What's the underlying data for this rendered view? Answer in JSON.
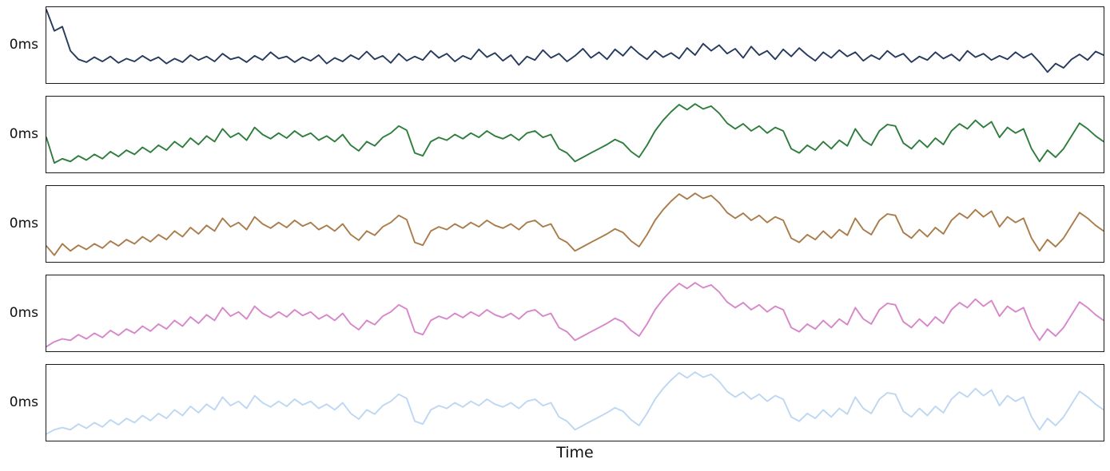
{
  "figure": {
    "xlabel": "Time",
    "ytick_label": "0ms",
    "background_color": "#ffffff",
    "border_color": "#1a1a1a",
    "text_color": "#111111"
  },
  "chart_data": {
    "type": "line",
    "title": "",
    "xlabel": "Time",
    "ylabel": "",
    "layout": "5 vertically stacked subplots, shared unlabeled time axis, no legend, no grid",
    "subplot_count": 5,
    "x": "133 evenly spaced time samples (no x tick labels)",
    "ytick_labels": [
      "0ms"
    ],
    "ytick_position": "middle of each subplot",
    "ylim": [
      0,
      1
    ],
    "legend": "none",
    "subplots": [
      {
        "name": "subplot-1",
        "color": "#253a5c",
        "values": [
          1.0,
          0.7,
          0.76,
          0.42,
          0.3,
          0.26,
          0.33,
          0.27,
          0.34,
          0.25,
          0.31,
          0.27,
          0.35,
          0.28,
          0.33,
          0.24,
          0.31,
          0.26,
          0.36,
          0.29,
          0.34,
          0.27,
          0.38,
          0.3,
          0.33,
          0.26,
          0.35,
          0.29,
          0.4,
          0.31,
          0.34,
          0.26,
          0.33,
          0.28,
          0.36,
          0.24,
          0.32,
          0.27,
          0.36,
          0.3,
          0.41,
          0.3,
          0.35,
          0.25,
          0.38,
          0.28,
          0.34,
          0.29,
          0.42,
          0.32,
          0.38,
          0.27,
          0.35,
          0.3,
          0.44,
          0.33,
          0.39,
          0.28,
          0.36,
          0.22,
          0.34,
          0.29,
          0.43,
          0.32,
          0.38,
          0.27,
          0.35,
          0.45,
          0.32,
          0.4,
          0.3,
          0.44,
          0.35,
          0.48,
          0.38,
          0.3,
          0.42,
          0.33,
          0.39,
          0.31,
          0.46,
          0.36,
          0.52,
          0.42,
          0.5,
          0.38,
          0.45,
          0.32,
          0.48,
          0.36,
          0.42,
          0.3,
          0.44,
          0.34,
          0.46,
          0.36,
          0.28,
          0.4,
          0.32,
          0.43,
          0.34,
          0.4,
          0.28,
          0.36,
          0.3,
          0.42,
          0.33,
          0.38,
          0.26,
          0.34,
          0.29,
          0.4,
          0.31,
          0.37,
          0.28,
          0.42,
          0.33,
          0.38,
          0.29,
          0.35,
          0.3,
          0.4,
          0.32,
          0.38,
          0.26,
          0.12,
          0.24,
          0.18,
          0.3,
          0.37,
          0.29,
          0.41,
          0.36
        ]
      },
      {
        "name": "subplot-2",
        "color": "#2e7d3c",
        "values": [
          0.46,
          0.1,
          0.16,
          0.12,
          0.2,
          0.14,
          0.22,
          0.16,
          0.26,
          0.19,
          0.28,
          0.22,
          0.32,
          0.25,
          0.35,
          0.28,
          0.4,
          0.32,
          0.45,
          0.36,
          0.48,
          0.4,
          0.58,
          0.46,
          0.52,
          0.42,
          0.6,
          0.5,
          0.44,
          0.52,
          0.45,
          0.55,
          0.47,
          0.52,
          0.42,
          0.48,
          0.4,
          0.5,
          0.35,
          0.27,
          0.4,
          0.34,
          0.46,
          0.52,
          0.62,
          0.56,
          0.24,
          0.2,
          0.4,
          0.46,
          0.42,
          0.5,
          0.44,
          0.52,
          0.46,
          0.55,
          0.48,
          0.44,
          0.5,
          0.42,
          0.52,
          0.55,
          0.46,
          0.5,
          0.3,
          0.24,
          0.12,
          0.18,
          0.24,
          0.3,
          0.36,
          0.43,
          0.38,
          0.26,
          0.18,
          0.35,
          0.55,
          0.7,
          0.82,
          0.92,
          0.85,
          0.93,
          0.86,
          0.9,
          0.8,
          0.66,
          0.58,
          0.65,
          0.55,
          0.62,
          0.52,
          0.6,
          0.55,
          0.3,
          0.24,
          0.35,
          0.28,
          0.4,
          0.3,
          0.42,
          0.34,
          0.58,
          0.42,
          0.35,
          0.55,
          0.64,
          0.62,
          0.38,
          0.3,
          0.42,
          0.32,
          0.45,
          0.36,
          0.55,
          0.65,
          0.58,
          0.7,
          0.6,
          0.68,
          0.46,
          0.6,
          0.52,
          0.58,
          0.3,
          0.12,
          0.28,
          0.18,
          0.3,
          0.48,
          0.66,
          0.58,
          0.48,
          0.4
        ]
      },
      {
        "name": "subplot-3",
        "color": "#aa7c4b",
        "values": [
          0.19,
          0.06,
          0.22,
          0.12,
          0.2,
          0.14,
          0.22,
          0.16,
          0.26,
          0.19,
          0.28,
          0.22,
          0.32,
          0.25,
          0.35,
          0.28,
          0.4,
          0.32,
          0.45,
          0.36,
          0.48,
          0.4,
          0.58,
          0.46,
          0.52,
          0.42,
          0.6,
          0.5,
          0.44,
          0.52,
          0.45,
          0.55,
          0.47,
          0.52,
          0.42,
          0.48,
          0.4,
          0.5,
          0.35,
          0.27,
          0.4,
          0.34,
          0.46,
          0.52,
          0.62,
          0.56,
          0.24,
          0.2,
          0.4,
          0.46,
          0.42,
          0.5,
          0.44,
          0.52,
          0.46,
          0.55,
          0.48,
          0.44,
          0.5,
          0.42,
          0.52,
          0.55,
          0.46,
          0.5,
          0.3,
          0.24,
          0.12,
          0.18,
          0.24,
          0.3,
          0.36,
          0.43,
          0.38,
          0.26,
          0.18,
          0.35,
          0.55,
          0.7,
          0.82,
          0.92,
          0.85,
          0.93,
          0.86,
          0.9,
          0.8,
          0.66,
          0.58,
          0.65,
          0.55,
          0.62,
          0.52,
          0.6,
          0.55,
          0.3,
          0.24,
          0.35,
          0.28,
          0.4,
          0.3,
          0.42,
          0.34,
          0.58,
          0.42,
          0.35,
          0.55,
          0.64,
          0.62,
          0.38,
          0.3,
          0.42,
          0.32,
          0.45,
          0.36,
          0.55,
          0.65,
          0.58,
          0.7,
          0.6,
          0.68,
          0.46,
          0.6,
          0.52,
          0.58,
          0.3,
          0.12,
          0.28,
          0.18,
          0.3,
          0.48,
          0.66,
          0.58,
          0.48,
          0.4
        ]
      },
      {
        "name": "subplot-4",
        "color": "#d787c9",
        "values": [
          0.03,
          0.1,
          0.14,
          0.12,
          0.2,
          0.14,
          0.22,
          0.16,
          0.26,
          0.19,
          0.28,
          0.22,
          0.32,
          0.25,
          0.35,
          0.28,
          0.4,
          0.32,
          0.45,
          0.36,
          0.48,
          0.4,
          0.58,
          0.46,
          0.52,
          0.42,
          0.6,
          0.5,
          0.44,
          0.52,
          0.45,
          0.55,
          0.47,
          0.52,
          0.42,
          0.48,
          0.4,
          0.5,
          0.35,
          0.27,
          0.4,
          0.34,
          0.46,
          0.52,
          0.62,
          0.56,
          0.24,
          0.2,
          0.4,
          0.46,
          0.42,
          0.5,
          0.44,
          0.52,
          0.46,
          0.55,
          0.48,
          0.44,
          0.5,
          0.42,
          0.52,
          0.55,
          0.46,
          0.5,
          0.3,
          0.24,
          0.12,
          0.18,
          0.24,
          0.3,
          0.36,
          0.43,
          0.38,
          0.26,
          0.18,
          0.35,
          0.55,
          0.7,
          0.82,
          0.92,
          0.85,
          0.93,
          0.86,
          0.9,
          0.8,
          0.66,
          0.58,
          0.65,
          0.55,
          0.62,
          0.52,
          0.6,
          0.55,
          0.3,
          0.24,
          0.35,
          0.28,
          0.4,
          0.3,
          0.42,
          0.34,
          0.58,
          0.42,
          0.35,
          0.55,
          0.64,
          0.62,
          0.38,
          0.3,
          0.42,
          0.32,
          0.45,
          0.36,
          0.55,
          0.65,
          0.58,
          0.7,
          0.6,
          0.68,
          0.46,
          0.6,
          0.52,
          0.58,
          0.3,
          0.12,
          0.28,
          0.18,
          0.3,
          0.48,
          0.66,
          0.58,
          0.48,
          0.4
        ]
      },
      {
        "name": "subplot-5",
        "color": "#bdd7f2",
        "values": [
          0.06,
          0.12,
          0.15,
          0.12,
          0.2,
          0.14,
          0.22,
          0.16,
          0.26,
          0.19,
          0.28,
          0.22,
          0.32,
          0.25,
          0.35,
          0.28,
          0.4,
          0.32,
          0.45,
          0.36,
          0.48,
          0.4,
          0.58,
          0.46,
          0.52,
          0.42,
          0.6,
          0.5,
          0.44,
          0.52,
          0.45,
          0.55,
          0.47,
          0.52,
          0.42,
          0.48,
          0.4,
          0.5,
          0.35,
          0.27,
          0.4,
          0.34,
          0.46,
          0.52,
          0.62,
          0.56,
          0.24,
          0.2,
          0.4,
          0.46,
          0.42,
          0.5,
          0.44,
          0.52,
          0.46,
          0.55,
          0.48,
          0.44,
          0.5,
          0.42,
          0.52,
          0.55,
          0.46,
          0.5,
          0.3,
          0.24,
          0.12,
          0.18,
          0.24,
          0.3,
          0.36,
          0.43,
          0.38,
          0.26,
          0.18,
          0.35,
          0.55,
          0.7,
          0.82,
          0.92,
          0.85,
          0.93,
          0.86,
          0.9,
          0.8,
          0.66,
          0.58,
          0.65,
          0.55,
          0.62,
          0.52,
          0.6,
          0.55,
          0.3,
          0.24,
          0.35,
          0.28,
          0.4,
          0.3,
          0.42,
          0.34,
          0.58,
          0.42,
          0.35,
          0.55,
          0.64,
          0.62,
          0.38,
          0.3,
          0.42,
          0.32,
          0.45,
          0.36,
          0.55,
          0.65,
          0.58,
          0.7,
          0.6,
          0.68,
          0.46,
          0.6,
          0.52,
          0.58,
          0.3,
          0.12,
          0.28,
          0.18,
          0.3,
          0.48,
          0.66,
          0.58,
          0.48,
          0.4
        ]
      }
    ]
  }
}
